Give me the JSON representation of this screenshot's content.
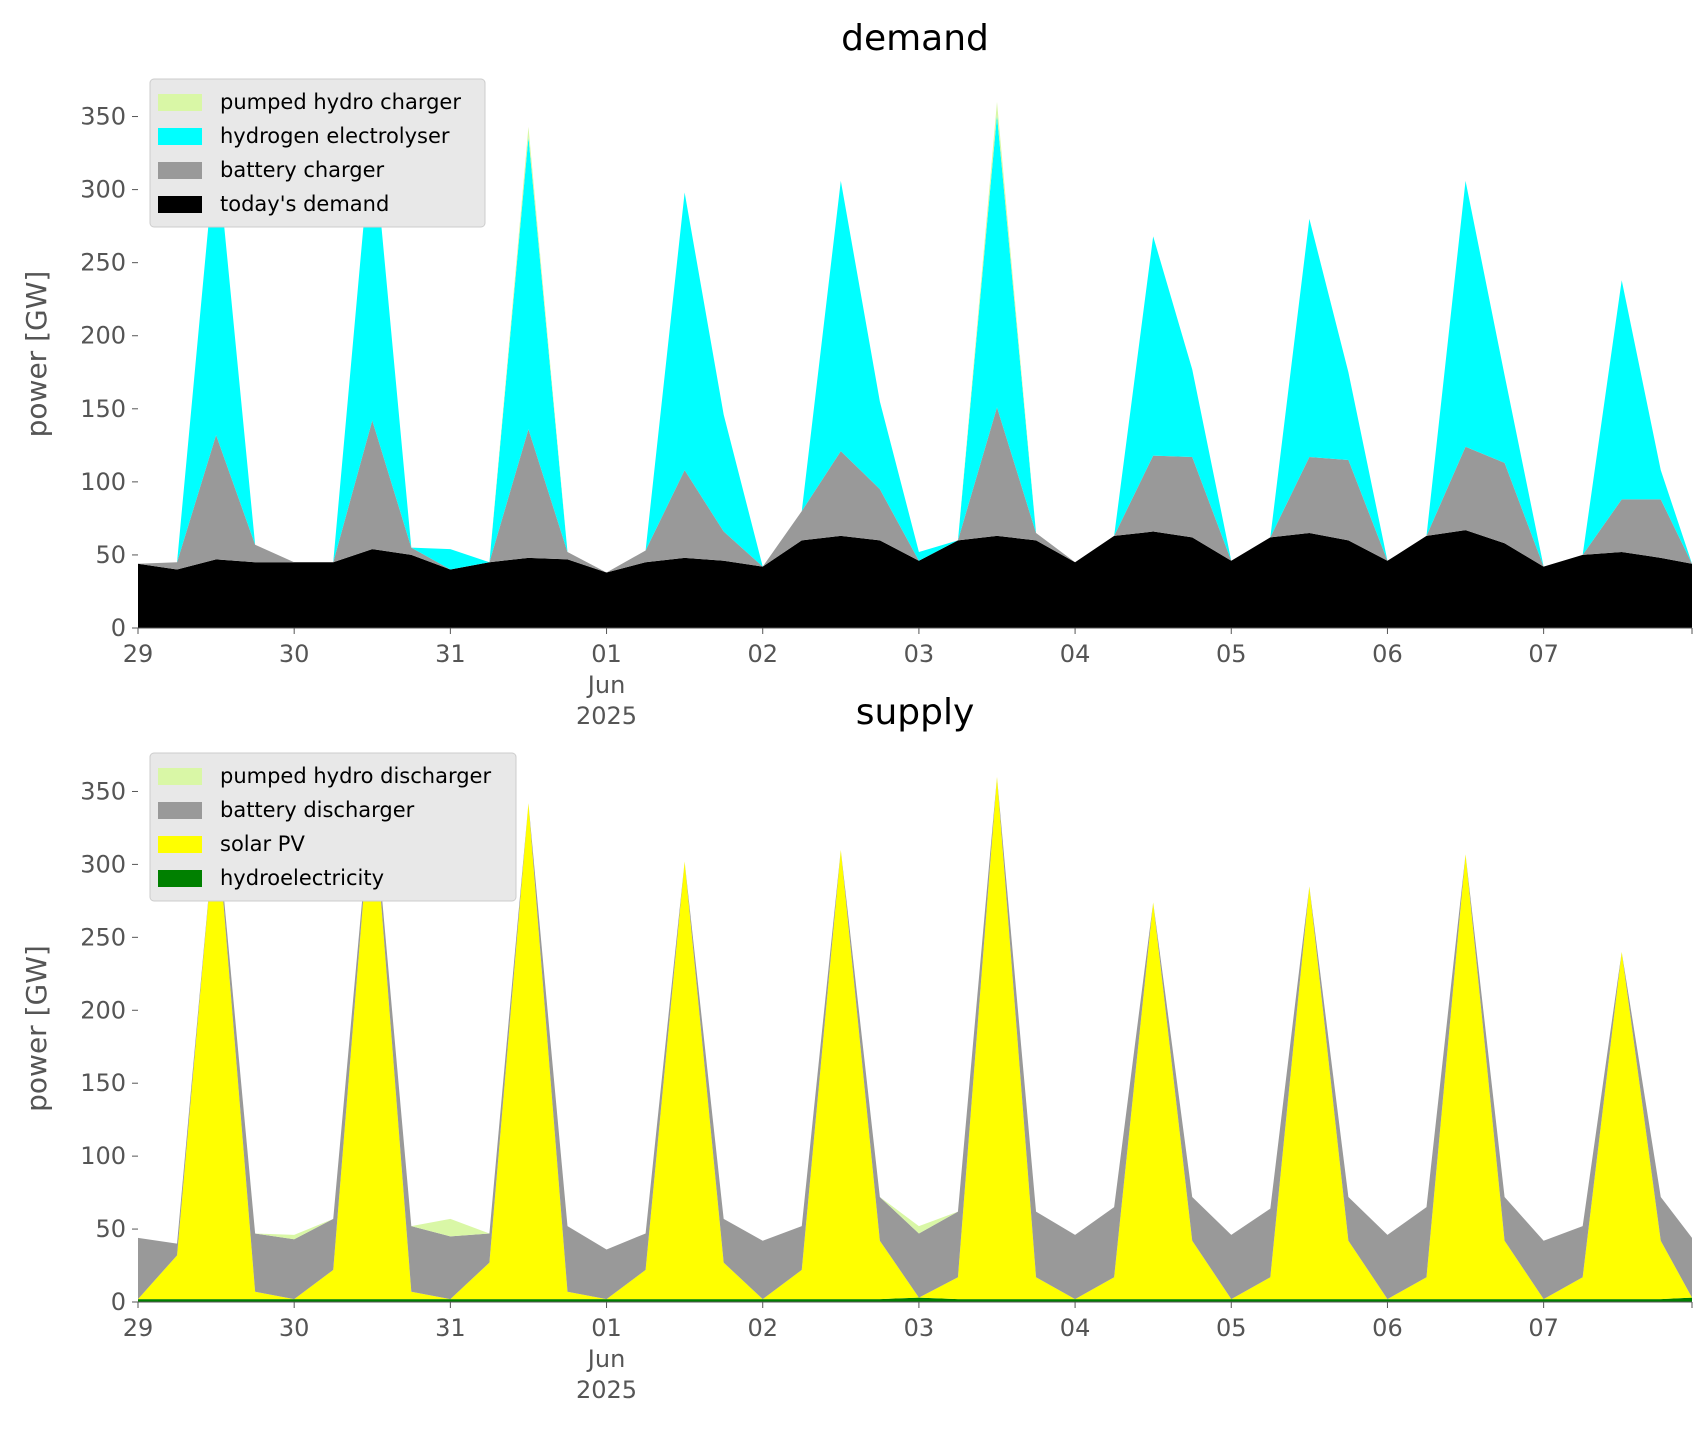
{
  "chart_data": [
    {
      "type": "area",
      "stacked": true,
      "title": "demand",
      "xlabel": "",
      "ylabel": "power [GW]",
      "ylim": [
        0,
        375
      ],
      "yticks": [
        0,
        50,
        100,
        150,
        200,
        250,
        300,
        350
      ],
      "xlim_days": [
        0,
        9.95
      ],
      "xtick_labels": [
        "29",
        "30",
        "31",
        "01\nJun\n2025",
        "02",
        "03",
        "04",
        "05",
        "06",
        "07"
      ],
      "legend_position": "top-left",
      "grid": false,
      "x": [
        0.0,
        0.25,
        0.5,
        0.75,
        1.0,
        1.25,
        1.5,
        1.75,
        2.0,
        2.25,
        2.5,
        2.75,
        3.0,
        3.25,
        3.5,
        3.75,
        4.0,
        4.25,
        4.5,
        4.75,
        5.0,
        5.25,
        5.5,
        5.75,
        6.0,
        6.25,
        6.5,
        6.75,
        7.0,
        7.25,
        7.5,
        7.75,
        8.0,
        8.25,
        8.5,
        8.75,
        9.0,
        9.25,
        9.5,
        9.75,
        9.95
      ],
      "series": [
        {
          "name": "today's demand",
          "color": "#000000",
          "values": [
            44,
            40,
            47,
            45,
            45,
            45,
            54,
            50,
            40,
            45,
            48,
            47,
            38,
            45,
            48,
            46,
            42,
            60,
            63,
            60,
            46,
            60,
            63,
            60,
            45,
            63,
            66,
            62,
            46,
            62,
            65,
            60,
            46,
            63,
            67,
            58,
            42,
            50,
            52,
            48,
            44
          ]
        },
        {
          "name": "battery charger",
          "color": "#999999",
          "values": [
            0,
            5,
            85,
            12,
            0,
            0,
            88,
            5,
            0,
            0,
            88,
            5,
            0,
            8,
            60,
            20,
            0,
            20,
            58,
            35,
            0,
            0,
            88,
            5,
            0,
            0,
            52,
            55,
            0,
            0,
            52,
            55,
            0,
            0,
            57,
            55,
            0,
            0,
            36,
            40,
            0
          ]
        },
        {
          "name": "hydrogen electrolyser",
          "color": "#00ffff",
          "values": [
            0,
            0,
            200,
            0,
            0,
            0,
            200,
            0,
            14,
            0,
            200,
            0,
            0,
            0,
            190,
            80,
            0,
            0,
            185,
            60,
            6,
            0,
            200,
            0,
            0,
            0,
            150,
            60,
            0,
            0,
            163,
            60,
            0,
            0,
            182,
            60,
            0,
            0,
            150,
            20,
            0
          ]
        },
        {
          "name": "pumped hydro charger",
          "color": "#d9f7a6",
          "values": [
            0,
            0,
            0,
            0,
            0,
            0,
            0,
            0,
            0,
            0,
            7,
            0,
            0,
            0,
            0,
            0,
            0,
            0,
            0,
            0,
            0,
            0,
            9,
            0,
            0,
            0,
            0,
            0,
            0,
            0,
            0,
            0,
            0,
            0,
            0,
            0,
            0,
            0,
            0,
            0,
            0
          ]
        }
      ],
      "legend_entries": [
        "pumped hydro charger",
        "hydrogen electrolyser",
        "battery charger",
        "today's demand"
      ]
    },
    {
      "type": "area",
      "stacked": true,
      "title": "supply",
      "xlabel": "",
      "ylabel": "power [GW]",
      "ylim": [
        0,
        375
      ],
      "yticks": [
        0,
        50,
        100,
        150,
        200,
        250,
        300,
        350
      ],
      "xlim_days": [
        0,
        9.95
      ],
      "xtick_labels": [
        "29",
        "30",
        "31",
        "01\nJun\n2025",
        "02",
        "03",
        "04",
        "05",
        "06",
        "07"
      ],
      "legend_position": "top-left",
      "grid": false,
      "x": [
        0.0,
        0.25,
        0.5,
        0.75,
        1.0,
        1.25,
        1.5,
        1.75,
        2.0,
        2.25,
        2.5,
        2.75,
        3.0,
        3.25,
        3.5,
        3.75,
        4.0,
        4.25,
        4.5,
        4.75,
        5.0,
        5.25,
        5.5,
        5.75,
        6.0,
        6.25,
        6.5,
        6.75,
        7.0,
        7.25,
        7.5,
        7.75,
        8.0,
        8.25,
        8.5,
        8.75,
        9.0,
        9.25,
        9.5,
        9.75,
        9.95
      ],
      "series": [
        {
          "name": "hydroelectricity",
          "color": "#008000",
          "values": [
            2,
            2,
            2,
            2,
            2,
            2,
            2,
            2,
            2,
            2,
            2,
            2,
            2,
            2,
            2,
            2,
            2,
            2,
            2,
            2,
            3,
            2,
            2,
            2,
            2,
            2,
            2,
            2,
            2,
            2,
            2,
            2,
            2,
            2,
            2,
            2,
            2,
            2,
            2,
            2,
            3
          ]
        },
        {
          "name": "solar PV",
          "color": "#ffff00",
          "values": [
            0,
            30,
            333,
            5,
            0,
            20,
            350,
            5,
            0,
            25,
            340,
            5,
            0,
            20,
            300,
            25,
            0,
            20,
            308,
            40,
            0,
            15,
            358,
            15,
            0,
            15,
            272,
            40,
            0,
            15,
            283,
            40,
            0,
            15,
            305,
            40,
            0,
            15,
            238,
            40,
            0
          ]
        },
        {
          "name": "battery discharger",
          "color": "#999999",
          "values": [
            42,
            8,
            0,
            40,
            41,
            35,
            0,
            45,
            43,
            20,
            0,
            45,
            34,
            25,
            0,
            30,
            40,
            30,
            0,
            30,
            44,
            45,
            0,
            45,
            44,
            48,
            0,
            30,
            44,
            47,
            0,
            30,
            44,
            48,
            0,
            30,
            40,
            35,
            0,
            30,
            41
          ]
        },
        {
          "name": "pumped hydro discharger",
          "color": "#d9f7a6",
          "values": [
            0,
            0,
            0,
            0,
            3,
            0,
            0,
            0,
            12,
            0,
            0,
            0,
            0,
            0,
            0,
            0,
            0,
            0,
            0,
            0,
            5,
            0,
            0,
            0,
            0,
            0,
            0,
            0,
            0,
            0,
            0,
            0,
            0,
            0,
            0,
            0,
            0,
            0,
            0,
            0,
            0
          ]
        }
      ],
      "legend_entries": [
        "pumped hydro discharger",
        "battery discharger",
        "solar PV",
        "hydroelectricity"
      ]
    }
  ]
}
